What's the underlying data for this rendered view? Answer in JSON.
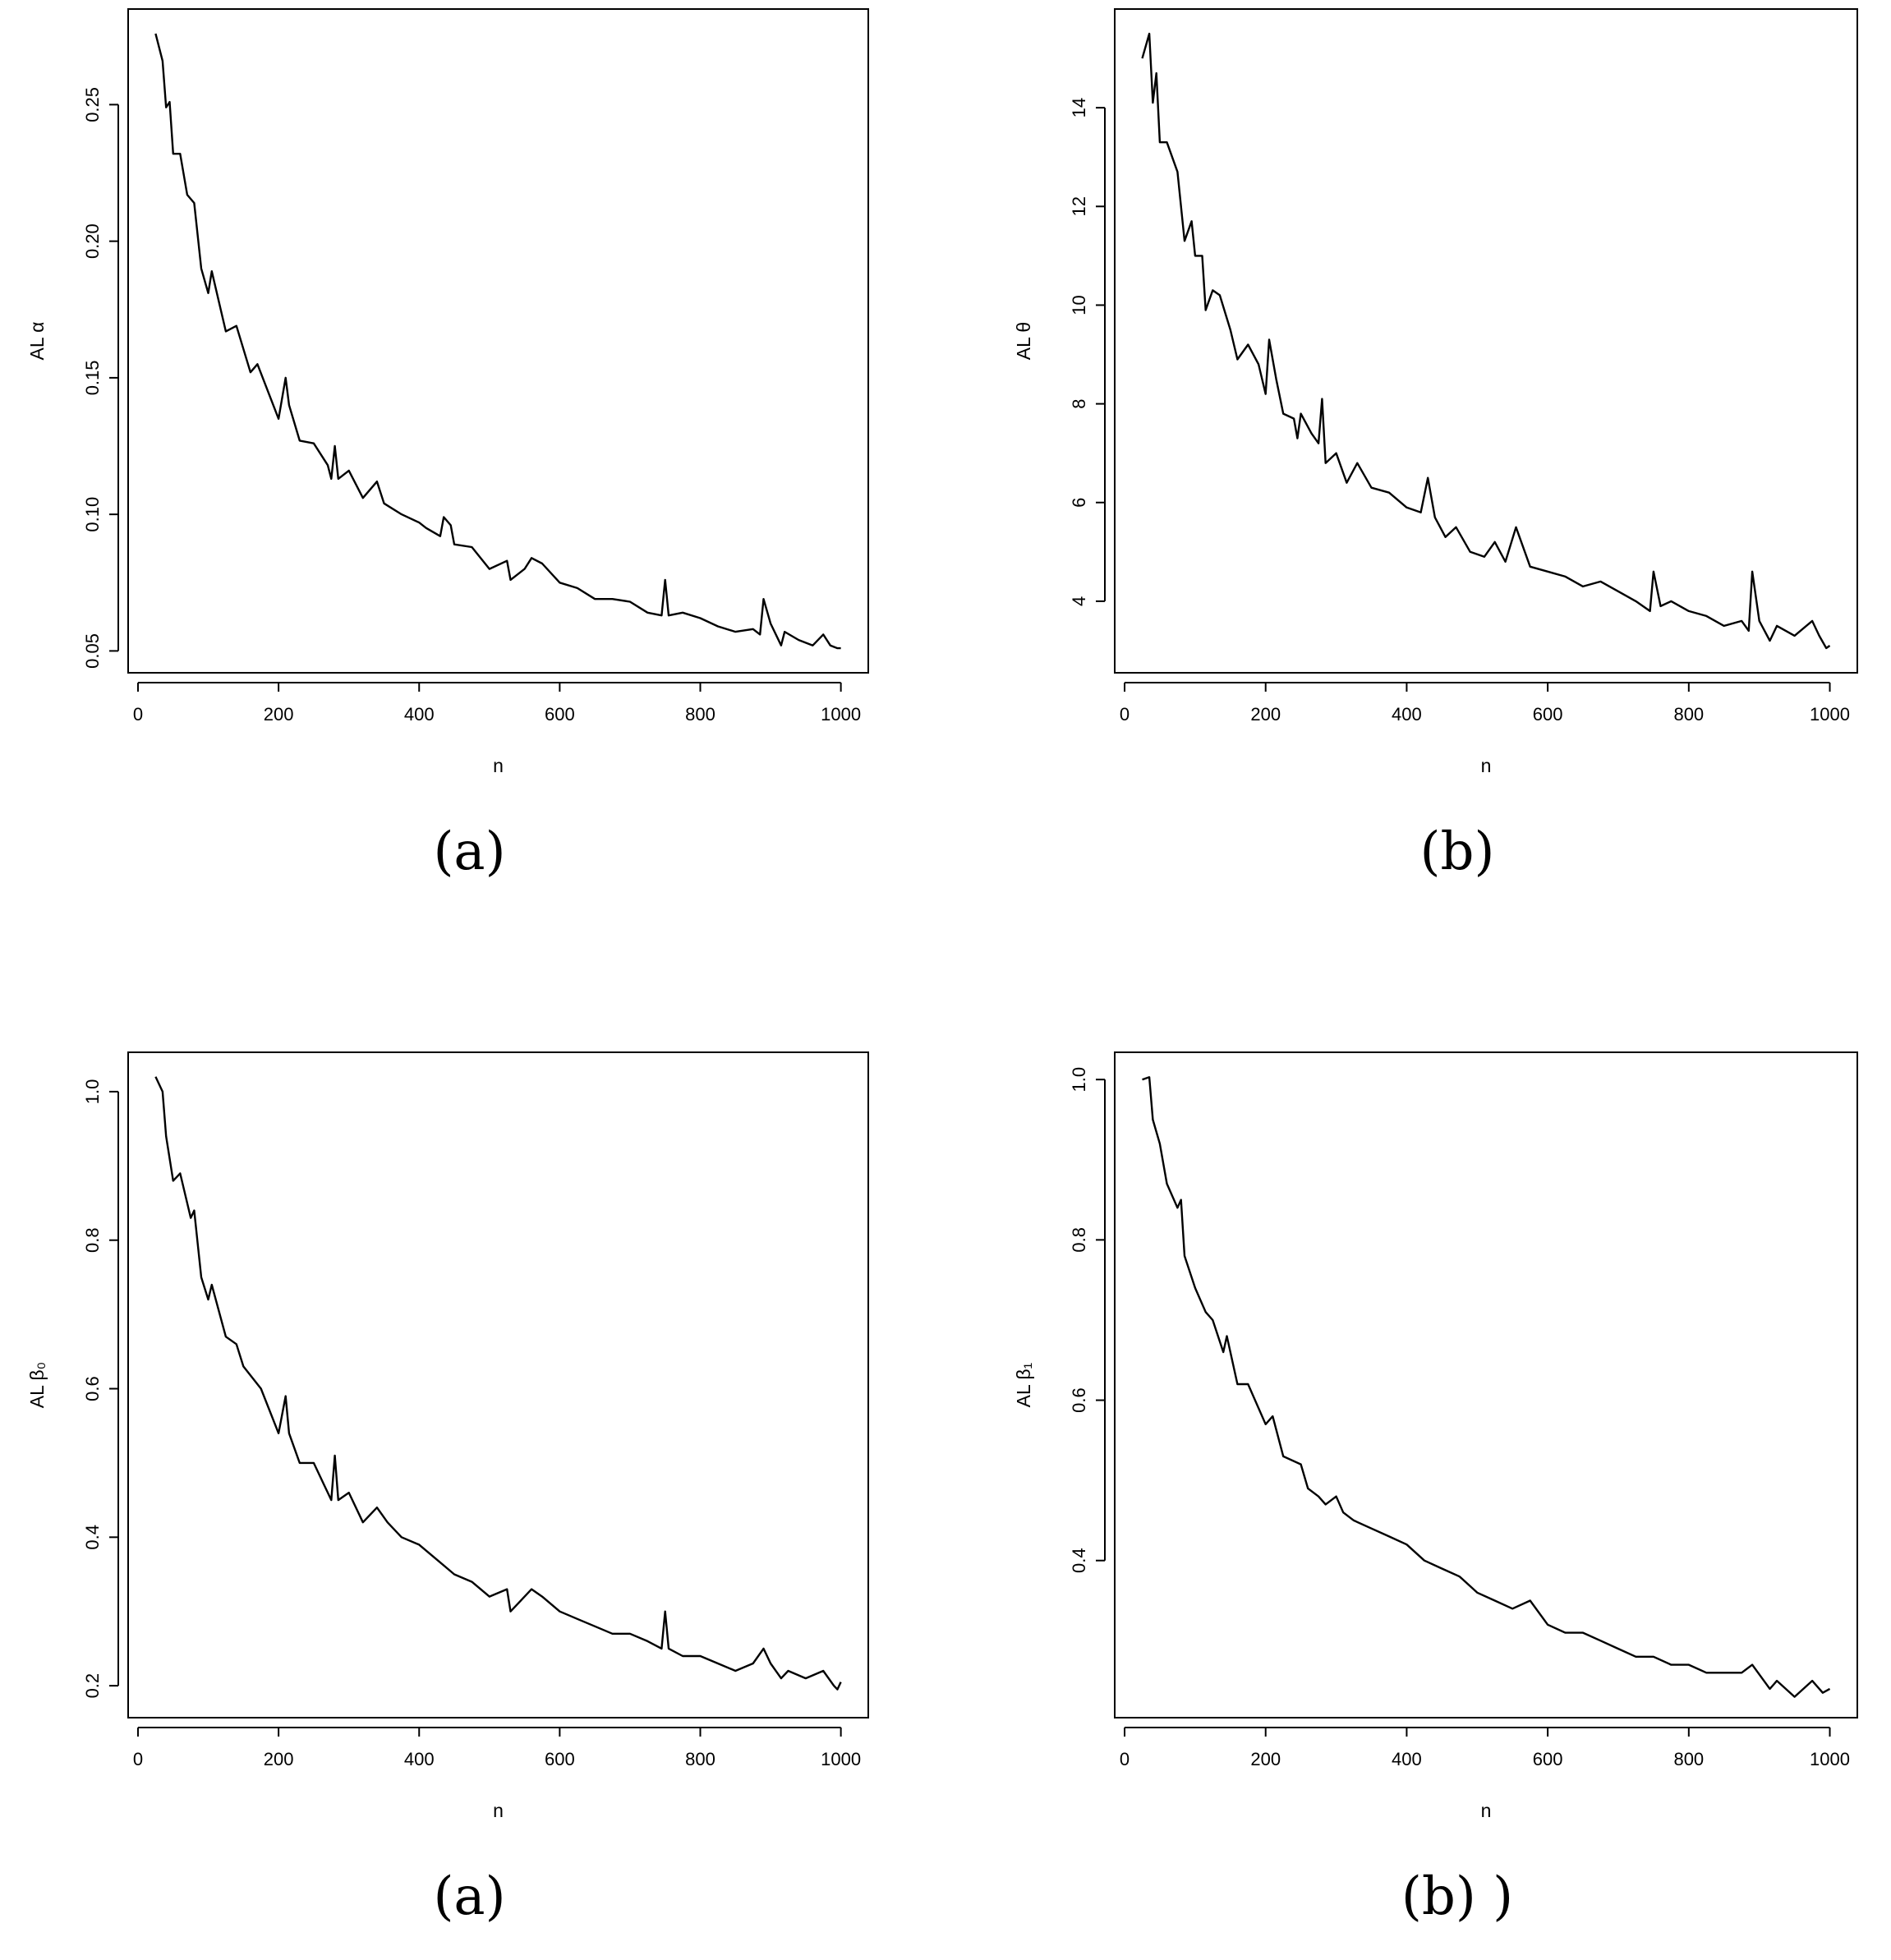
{
  "chart_data": [
    {
      "type": "line",
      "caption": "(a)",
      "xlabel": "n",
      "ylabel": "AL α",
      "xlim": [
        -14,
        1039
      ],
      "ylim": [
        0.042,
        0.285
      ],
      "xticks": [
        0,
        200,
        400,
        600,
        800,
        1000
      ],
      "xtick_labels": [
        "0",
        "200",
        "400",
        "600",
        "800",
        "1000"
      ],
      "yticks": [
        0.05,
        0.1,
        0.15,
        0.2,
        0.25
      ],
      "ytick_labels": [
        "0.05",
        "0.10",
        "0.15",
        "0.20",
        "0.25"
      ],
      "grid": false,
      "x": [
        25,
        35,
        40,
        45,
        50,
        60,
        70,
        80,
        90,
        100,
        105,
        125,
        140,
        160,
        170,
        200,
        210,
        215,
        230,
        250,
        270,
        275,
        280,
        285,
        300,
        320,
        340,
        350,
        375,
        400,
        410,
        430,
        435,
        445,
        450,
        475,
        500,
        525,
        530,
        550,
        560,
        575,
        600,
        625,
        650,
        675,
        700,
        725,
        745,
        750,
        755,
        775,
        800,
        825,
        850,
        875,
        885,
        890,
        900,
        915,
        920,
        940,
        960,
        975,
        985,
        995,
        1000
      ],
      "y": [
        0.276,
        0.266,
        0.249,
        0.251,
        0.232,
        0.232,
        0.217,
        0.214,
        0.19,
        0.181,
        0.189,
        0.167,
        0.169,
        0.152,
        0.155,
        0.135,
        0.15,
        0.14,
        0.127,
        0.126,
        0.118,
        0.113,
        0.125,
        0.113,
        0.116,
        0.106,
        0.112,
        0.104,
        0.1,
        0.097,
        0.095,
        0.092,
        0.099,
        0.096,
        0.089,
        0.088,
        0.08,
        0.083,
        0.076,
        0.08,
        0.084,
        0.082,
        0.075,
        0.073,
        0.069,
        0.069,
        0.068,
        0.064,
        0.063,
        0.076,
        0.063,
        0.064,
        0.062,
        0.059,
        0.057,
        0.058,
        0.056,
        0.069,
        0.06,
        0.052,
        0.057,
        0.054,
        0.052,
        0.056,
        0.052,
        0.051,
        0.051
      ]
    },
    {
      "type": "line",
      "caption": "(b)",
      "xlabel": "n",
      "ylabel": "AL θ",
      "xlim": [
        -14,
        1039
      ],
      "ylim": [
        2.55,
        16.0
      ],
      "xticks": [
        0,
        200,
        400,
        600,
        800,
        1000
      ],
      "xtick_labels": [
        "0",
        "200",
        "400",
        "600",
        "800",
        "1000"
      ],
      "yticks": [
        4,
        6,
        8,
        10,
        12,
        14
      ],
      "ytick_labels": [
        "4",
        "6",
        "8",
        "10",
        "12",
        "14"
      ],
      "grid": false,
      "x": [
        25,
        35,
        40,
        45,
        50,
        60,
        75,
        85,
        95,
        100,
        110,
        115,
        125,
        135,
        150,
        160,
        175,
        190,
        200,
        205,
        215,
        225,
        240,
        245,
        250,
        265,
        275,
        280,
        285,
        300,
        315,
        330,
        350,
        375,
        400,
        420,
        430,
        440,
        455,
        470,
        490,
        510,
        525,
        540,
        555,
        575,
        600,
        625,
        650,
        675,
        700,
        725,
        745,
        750,
        760,
        775,
        800,
        825,
        850,
        875,
        885,
        890,
        900,
        915,
        925,
        950,
        975,
        985,
        995,
        1000
      ],
      "y": [
        15.0,
        15.5,
        14.1,
        14.7,
        13.3,
        13.3,
        12.7,
        11.3,
        11.7,
        11.0,
        11.0,
        9.9,
        10.3,
        10.2,
        9.5,
        8.9,
        9.2,
        8.8,
        8.2,
        9.3,
        8.5,
        7.8,
        7.7,
        7.3,
        7.8,
        7.4,
        7.2,
        8.1,
        6.8,
        7.0,
        6.4,
        6.8,
        6.3,
        6.2,
        5.9,
        5.8,
        6.5,
        5.7,
        5.3,
        5.5,
        5.0,
        4.9,
        5.2,
        4.8,
        5.5,
        4.7,
        4.6,
        4.5,
        4.3,
        4.4,
        4.2,
        4.0,
        3.8,
        4.6,
        3.9,
        4.0,
        3.8,
        3.7,
        3.5,
        3.6,
        3.4,
        4.6,
        3.6,
        3.2,
        3.5,
        3.3,
        3.6,
        3.3,
        3.05,
        3.1
      ]
    },
    {
      "type": "line",
      "caption": "(a)",
      "xlabel": "n",
      "ylabel": "AL β₀",
      "xlim": [
        -14,
        1039
      ],
      "ylim": [
        0.157,
        1.053
      ],
      "xticks": [
        0,
        200,
        400,
        600,
        800,
        1000
      ],
      "xtick_labels": [
        "0",
        "200",
        "400",
        "600",
        "800",
        "1000"
      ],
      "yticks": [
        0.2,
        0.4,
        0.6,
        0.8,
        1.0
      ],
      "ytick_labels": [
        "0.2",
        "0.4",
        "0.6",
        "0.8",
        "1.0"
      ],
      "grid": false,
      "x": [
        25,
        35,
        40,
        50,
        60,
        75,
        80,
        90,
        100,
        105,
        125,
        140,
        150,
        175,
        200,
        210,
        215,
        230,
        250,
        265,
        275,
        280,
        285,
        300,
        320,
        340,
        355,
        375,
        400,
        425,
        450,
        475,
        500,
        525,
        530,
        560,
        575,
        600,
        625,
        650,
        675,
        700,
        725,
        745,
        750,
        755,
        775,
        800,
        825,
        850,
        875,
        890,
        900,
        915,
        925,
        950,
        975,
        990,
        995,
        1000
      ],
      "y": [
        1.02,
        1.0,
        0.94,
        0.88,
        0.89,
        0.83,
        0.84,
        0.75,
        0.72,
        0.74,
        0.67,
        0.66,
        0.63,
        0.6,
        0.54,
        0.59,
        0.54,
        0.5,
        0.5,
        0.47,
        0.45,
        0.51,
        0.45,
        0.46,
        0.42,
        0.44,
        0.42,
        0.4,
        0.39,
        0.37,
        0.35,
        0.34,
        0.32,
        0.33,
        0.3,
        0.33,
        0.32,
        0.3,
        0.29,
        0.28,
        0.27,
        0.27,
        0.26,
        0.25,
        0.3,
        0.25,
        0.24,
        0.24,
        0.23,
        0.22,
        0.23,
        0.25,
        0.23,
        0.21,
        0.22,
        0.21,
        0.22,
        0.2,
        0.195,
        0.205
      ]
    },
    {
      "type": "line",
      "caption": "(b) )",
      "xlabel": "n",
      "ylabel": "AL β₁",
      "xlim": [
        -14,
        1039
      ],
      "ylim": [
        0.204,
        1.034
      ],
      "xticks": [
        0,
        200,
        400,
        600,
        800,
        1000
      ],
      "xtick_labels": [
        "0",
        "200",
        "400",
        "600",
        "800",
        "1000"
      ],
      "yticks": [
        0.4,
        0.6,
        0.8,
        1.0
      ],
      "ytick_labels": [
        "0.4",
        "0.6",
        "0.8",
        "1.0"
      ],
      "grid": false,
      "x": [
        25,
        35,
        40,
        50,
        60,
        75,
        80,
        85,
        100,
        115,
        125,
        140,
        145,
        160,
        175,
        200,
        210,
        225,
        250,
        260,
        275,
        285,
        300,
        310,
        325,
        350,
        375,
        400,
        425,
        450,
        475,
        500,
        525,
        550,
        575,
        600,
        625,
        650,
        675,
        700,
        725,
        750,
        775,
        800,
        825,
        850,
        875,
        890,
        915,
        925,
        950,
        975,
        990,
        1000
      ],
      "y": [
        1.0,
        1.003,
        0.95,
        0.92,
        0.87,
        0.84,
        0.85,
        0.78,
        0.74,
        0.71,
        0.7,
        0.66,
        0.68,
        0.62,
        0.62,
        0.57,
        0.58,
        0.53,
        0.52,
        0.49,
        0.48,
        0.47,
        0.48,
        0.46,
        0.45,
        0.44,
        0.43,
        0.42,
        0.4,
        0.39,
        0.38,
        0.36,
        0.35,
        0.34,
        0.35,
        0.32,
        0.31,
        0.31,
        0.3,
        0.29,
        0.28,
        0.28,
        0.27,
        0.27,
        0.26,
        0.26,
        0.26,
        0.27,
        0.24,
        0.25,
        0.23,
        0.25,
        0.235,
        0.24
      ]
    }
  ]
}
